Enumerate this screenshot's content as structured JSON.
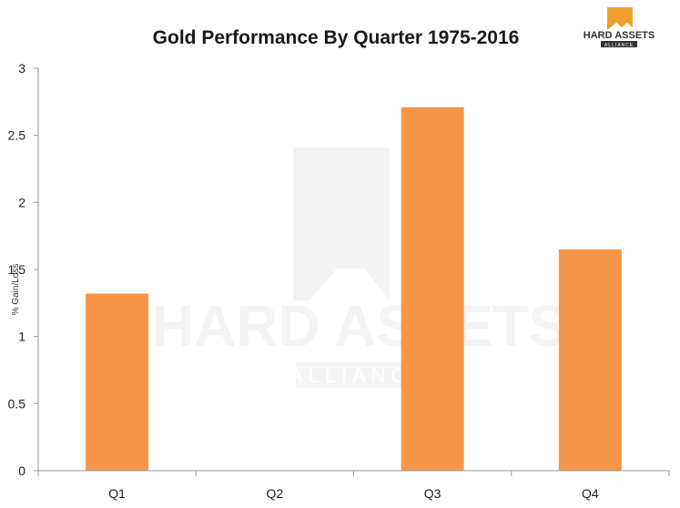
{
  "chart_data": {
    "type": "bar",
    "title": "Gold Performance By Quarter 1975-2016",
    "ylabel": "% Gain/Loss",
    "xlabel": "",
    "categories": [
      "Q1",
      "Q2",
      "Q3",
      "Q4"
    ],
    "values": [
      1.32,
      0,
      2.71,
      1.65
    ],
    "ylim": [
      0,
      3
    ],
    "yticks": [
      "0",
      "0.5",
      "1",
      "1.5",
      "2",
      "2.5",
      "3"
    ],
    "bar_color": "#f5964a",
    "grid": false,
    "legend": "none"
  },
  "logo": {
    "text_line1": "HARD ASSETS",
    "text_line2": "ALLIANCE",
    "color": "#f0a030"
  },
  "watermark": {
    "text_line1": "HARD ASSETS",
    "text_line2": "ALLIANCE",
    "color": "#f3f3f3"
  }
}
